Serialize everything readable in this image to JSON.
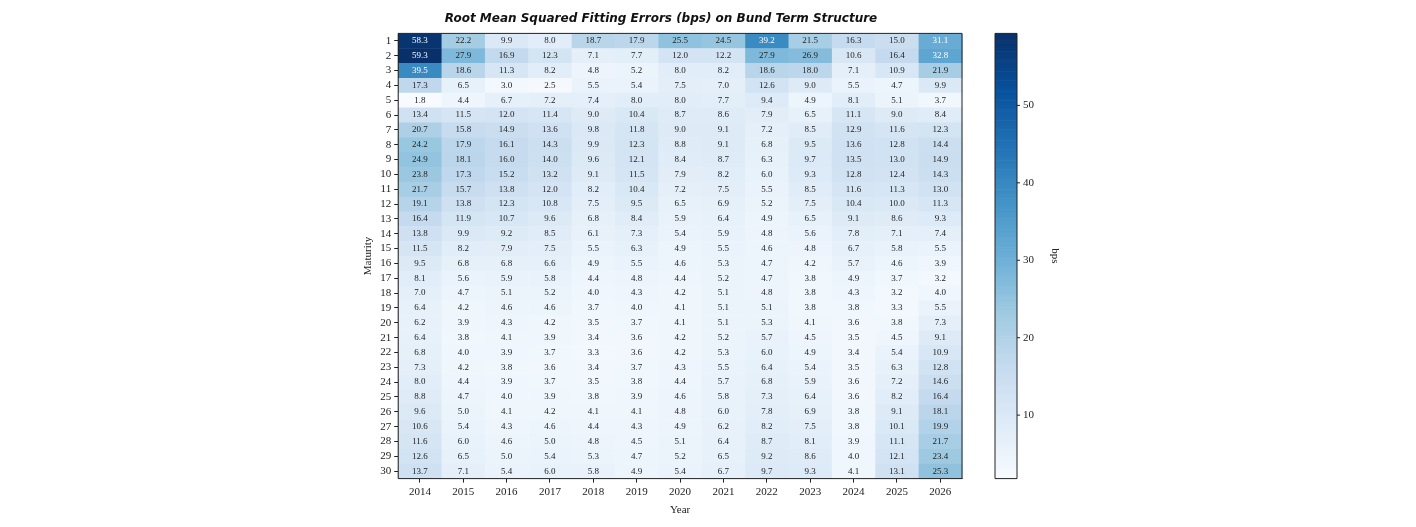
{
  "chart_data": {
    "type": "heatmap",
    "title": "Root Mean Squared Fitting Errors (bps) on Bund Term Structure",
    "xlabel": "Year",
    "ylabel": "Maturity",
    "clabel": "bps",
    "categories": [
      "2014",
      "2015",
      "2016",
      "2017",
      "2018",
      "2019",
      "2020",
      "2021",
      "2022",
      "2023",
      "2024",
      "2025",
      "2026"
    ],
    "y_categories": [
      "1",
      "2",
      "3",
      "4",
      "5",
      "6",
      "7",
      "8",
      "9",
      "10",
      "11",
      "12",
      "13",
      "14",
      "15",
      "16",
      "17",
      "18",
      "19",
      "20",
      "21",
      "22",
      "23",
      "24",
      "25",
      "26",
      "27",
      "28",
      "29",
      "30"
    ],
    "cells": [
      [
        58.3,
        22.2,
        9.9,
        8.0,
        18.7,
        17.9,
        25.5,
        24.5,
        39.2,
        21.5,
        16.3,
        15.0,
        31.1
      ],
      [
        59.3,
        27.9,
        16.9,
        12.3,
        7.1,
        7.7,
        12.0,
        12.2,
        27.9,
        26.9,
        10.6,
        16.4,
        32.8
      ],
      [
        39.5,
        18.6,
        11.3,
        8.2,
        4.8,
        5.2,
        8.0,
        8.2,
        18.6,
        18.0,
        7.1,
        10.9,
        21.9
      ],
      [
        17.3,
        6.5,
        3.0,
        2.5,
        5.5,
        5.4,
        7.5,
        7.0,
        12.6,
        9.0,
        5.5,
        4.7,
        9.9
      ],
      [
        1.8,
        4.4,
        6.7,
        7.2,
        7.4,
        8.0,
        8.0,
        7.7,
        9.4,
        4.9,
        8.1,
        5.1,
        3.7
      ],
      [
        13.4,
        11.5,
        12.0,
        11.4,
        9.0,
        10.4,
        8.7,
        8.6,
        7.9,
        6.5,
        11.1,
        9.0,
        8.4
      ],
      [
        20.7,
        15.8,
        14.9,
        13.6,
        9.8,
        11.8,
        9.0,
        9.1,
        7.2,
        8.5,
        12.9,
        11.6,
        12.3
      ],
      [
        24.2,
        17.9,
        16.1,
        14.3,
        9.9,
        12.3,
        8.8,
        9.1,
        6.8,
        9.5,
        13.6,
        12.8,
        14.4
      ],
      [
        24.9,
        18.1,
        16.0,
        14.0,
        9.6,
        12.1,
        8.4,
        8.7,
        6.3,
        9.7,
        13.5,
        13.0,
        14.9
      ],
      [
        23.8,
        17.3,
        15.2,
        13.2,
        9.1,
        11.5,
        7.9,
        8.2,
        6.0,
        9.3,
        12.8,
        12.4,
        14.3
      ],
      [
        21.7,
        15.7,
        13.8,
        12.0,
        8.2,
        10.4,
        7.2,
        7.5,
        5.5,
        8.5,
        11.6,
        11.3,
        13.0
      ],
      [
        19.1,
        13.8,
        12.3,
        10.8,
        7.5,
        9.5,
        6.5,
        6.9,
        5.2,
        7.5,
        10.4,
        10.0,
        11.3
      ],
      [
        16.4,
        11.9,
        10.7,
        9.6,
        6.8,
        8.4,
        5.9,
        6.4,
        4.9,
        6.5,
        9.1,
        8.6,
        9.3
      ],
      [
        13.8,
        9.9,
        9.2,
        8.5,
        6.1,
        7.3,
        5.4,
        5.9,
        4.8,
        5.6,
        7.8,
        7.1,
        7.4
      ],
      [
        11.5,
        8.2,
        7.9,
        7.5,
        5.5,
        6.3,
        4.9,
        5.5,
        4.6,
        4.8,
        6.7,
        5.8,
        5.5
      ],
      [
        9.5,
        6.8,
        6.8,
        6.6,
        4.9,
        5.5,
        4.6,
        5.3,
        4.7,
        4.2,
        5.7,
        4.6,
        3.9
      ],
      [
        8.1,
        5.6,
        5.9,
        5.8,
        4.4,
        4.8,
        4.4,
        5.2,
        4.7,
        3.8,
        4.9,
        3.7,
        3.2
      ],
      [
        7.0,
        4.7,
        5.1,
        5.2,
        4.0,
        4.3,
        4.2,
        5.1,
        4.8,
        3.8,
        4.3,
        3.2,
        4.0
      ],
      [
        6.4,
        4.2,
        4.6,
        4.6,
        3.7,
        4.0,
        4.1,
        5.1,
        5.1,
        3.8,
        3.8,
        3.3,
        5.5
      ],
      [
        6.2,
        3.9,
        4.3,
        4.2,
        3.5,
        3.7,
        4.1,
        5.1,
        5.3,
        4.1,
        3.6,
        3.8,
        7.3
      ],
      [
        6.4,
        3.8,
        4.1,
        3.9,
        3.4,
        3.6,
        4.2,
        5.2,
        5.7,
        4.5,
        3.5,
        4.5,
        9.1
      ],
      [
        6.8,
        4.0,
        3.9,
        3.7,
        3.3,
        3.6,
        4.2,
        5.3,
        6.0,
        4.9,
        3.4,
        5.4,
        10.9
      ],
      [
        7.3,
        4.2,
        3.8,
        3.6,
        3.4,
        3.7,
        4.3,
        5.5,
        6.4,
        5.4,
        3.5,
        6.3,
        12.8
      ],
      [
        8.0,
        4.4,
        3.9,
        3.7,
        3.5,
        3.8,
        4.4,
        5.7,
        6.8,
        5.9,
        3.6,
        7.2,
        14.6
      ],
      [
        8.8,
        4.7,
        4.0,
        3.9,
        3.8,
        3.9,
        4.6,
        5.8,
        7.3,
        6.4,
        3.6,
        8.2,
        16.4
      ],
      [
        9.6,
        5.0,
        4.1,
        4.2,
        4.1,
        4.1,
        4.8,
        6.0,
        7.8,
        6.9,
        3.8,
        9.1,
        18.1
      ],
      [
        10.6,
        5.4,
        4.3,
        4.6,
        4.4,
        4.3,
        4.9,
        6.2,
        8.2,
        7.5,
        3.8,
        10.1,
        19.9
      ],
      [
        11.6,
        6.0,
        4.6,
        5.0,
        4.8,
        4.5,
        5.1,
        6.4,
        8.7,
        8.1,
        3.9,
        11.1,
        21.7
      ],
      [
        12.6,
        6.5,
        5.0,
        5.4,
        5.3,
        4.7,
        5.2,
        6.5,
        9.2,
        8.6,
        4.0,
        12.1,
        23.4
      ],
      [
        13.7,
        7.1,
        5.4,
        6.0,
        5.8,
        4.9,
        5.4,
        6.7,
        9.7,
        9.3,
        4.1,
        13.1,
        25.3
      ]
    ],
    "cell_labels": [
      [
        "58.3",
        "22.2",
        "9.9",
        "8.0",
        "18.7",
        "17.9",
        "25.5",
        "24.5",
        "39.2",
        "21.5",
        "16.3",
        "15.0",
        "31.1"
      ],
      [
        "59.3",
        "27.9",
        "16.9",
        "12.3",
        "7.1",
        "7.7",
        "12.0",
        "12.2",
        "27.9",
        "26.9",
        "10.6",
        "16.4",
        "32.8"
      ],
      [
        "39.5",
        "18.6",
        "11.3",
        "8.2",
        "4.8",
        "5.2",
        "8.0",
        "8.2",
        "18.6",
        "18.0",
        "7.1",
        "10.9",
        "21.9"
      ],
      [
        "17.3",
        "6.5",
        "3.0",
        "2.5",
        "5.5",
        "5.4",
        "7.5",
        "7.0",
        "12.6",
        "9.0",
        "5.5",
        "4.7",
        "9.9"
      ],
      [
        "1.8",
        "4.4",
        "6.7",
        "7.2",
        "7.4",
        "8.0",
        "8.0",
        "7.7",
        "9.4",
        "4.9",
        "8.1",
        "5.1",
        "3.7"
      ],
      [
        "13.4",
        "11.5",
        "12.0",
        "11.4",
        "9.0",
        "10.4",
        "8.7",
        "8.6",
        "7.9",
        "6.5",
        "11.1",
        "9.0",
        "8.4"
      ],
      [
        "20.7",
        "15.8",
        "14.9",
        "13.6",
        "9.8",
        "11.8",
        "9.0",
        "9.1",
        "7.2",
        "8.5",
        "12.9",
        "11.6",
        "12.3"
      ],
      [
        "24.2",
        "17.9",
        "16.1",
        "14.3",
        "9.9",
        "12.3",
        "8.8",
        "9.1",
        "6.8",
        "9.5",
        "13.6",
        "12.8",
        "14.4"
      ],
      [
        "24.9",
        "18.1",
        "16.0",
        "14.0",
        "9.6",
        "12.1",
        "8.4",
        "8.7",
        "6.3",
        "9.7",
        "13.5",
        "13.0",
        "14.9"
      ],
      [
        "23.8",
        "17.3",
        "15.2",
        "13.2",
        "9.1",
        "11.5",
        "7.9",
        "8.2",
        "6.0",
        "9.3",
        "12.8",
        "12.4",
        "14.3"
      ],
      [
        "21.7",
        "15.7",
        "13.8",
        "12.0",
        "8.2",
        "10.4",
        "7.2",
        "7.5",
        "5.5",
        "8.5",
        "11.6",
        "11.3",
        "13.0"
      ],
      [
        "19.1",
        "13.8",
        "12.3",
        "10.8",
        "7.5",
        "9.5",
        "6.5",
        "6.9",
        "5.2",
        "7.5",
        "10.4",
        "10.0",
        "11.3"
      ],
      [
        "16.4",
        "11.9",
        "10.7",
        "9.6",
        "6.8",
        "8.4",
        "5.9",
        "6.4",
        "4.9",
        "6.5",
        "9.1",
        "8.6",
        "9.3"
      ],
      [
        "13.8",
        "9.9",
        "9.2",
        "8.5",
        "6.1",
        "7.3",
        "5.4",
        "5.9",
        "4.8",
        "5.6",
        "7.8",
        "7.1",
        "7.4"
      ],
      [
        "11.5",
        "8.2",
        "7.9",
        "7.5",
        "5.5",
        "6.3",
        "4.9",
        "5.5",
        "4.6",
        "4.8",
        "6.7",
        "5.8",
        "5.5"
      ],
      [
        "9.5",
        "6.8",
        "6.8",
        "6.6",
        "4.9",
        "5.5",
        "4.6",
        "5.3",
        "4.7",
        "4.2",
        "5.7",
        "4.6",
        "3.9"
      ],
      [
        "8.1",
        "5.6",
        "5.9",
        "5.8",
        "4.4",
        "4.8",
        "4.4",
        "5.2",
        "4.7",
        "3.8",
        "4.9",
        "3.7",
        "3.2"
      ],
      [
        "7.0",
        "4.7",
        "5.1",
        "5.2",
        "4.0",
        "4.3",
        "4.2",
        "5.1",
        "4.8",
        "3.8",
        "4.3",
        "3.2",
        "4.0"
      ],
      [
        "6.4",
        "4.2",
        "4.6",
        "4.6",
        "3.7",
        "4.0",
        "4.1",
        "5.1",
        "5.1",
        "3.8",
        "3.8",
        "3.3",
        "5.5"
      ],
      [
        "6.2",
        "3.9",
        "4.3",
        "4.2",
        "3.5",
        "3.7",
        "4.1",
        "5.1",
        "5.3",
        "4.1",
        "3.6",
        "3.8",
        "7.3"
      ],
      [
        "6.4",
        "3.8",
        "4.1",
        "3.9",
        "3.4",
        "3.6",
        "4.2",
        "5.2",
        "5.7",
        "4.5",
        "3.5",
        "4.5",
        "9.1"
      ],
      [
        "6.8",
        "4.0",
        "3.9",
        "3.7",
        "3.3",
        "3.6",
        "4.2",
        "5.3",
        "6.0",
        "4.9",
        "3.4",
        "5.4",
        "10.9"
      ],
      [
        "7.3",
        "4.2",
        "3.8",
        "3.6",
        "3.4",
        "3.7",
        "4.3",
        "5.5",
        "6.4",
        "5.4",
        "3.5",
        "6.3",
        "12.8"
      ],
      [
        "8.0",
        "4.4",
        "3.9",
        "3.7",
        "3.5",
        "3.8",
        "4.4",
        "5.7",
        "6.8",
        "5.9",
        "3.6",
        "7.2",
        "14.6"
      ],
      [
        "8.8",
        "4.7",
        "4.0",
        "3.9",
        "3.8",
        "3.9",
        "4.6",
        "5.8",
        "7.3",
        "6.4",
        "3.6",
        "8.2",
        "16.4"
      ],
      [
        "9.6",
        "5.0",
        "4.1",
        "4.2",
        "4.1",
        "4.1",
        "4.8",
        "6.0",
        "7.8",
        "6.9",
        "3.8",
        "9.1",
        "18.1"
      ],
      [
        "10.6",
        "5.4",
        "4.3",
        "4.6",
        "4.4",
        "4.3",
        "4.9",
        "6.2",
        "8.2",
        "7.5",
        "3.8",
        "10.1",
        "19.9"
      ],
      [
        "11.6",
        "6.0",
        "4.6",
        "5.0",
        "4.8",
        "4.5",
        "5.1",
        "6.4",
        "8.7",
        "8.1",
        "3.9",
        "11.1",
        "21.7"
      ],
      [
        "12.6",
        "6.5",
        "5.0",
        "5.4",
        "5.3",
        "4.7",
        "5.2",
        "6.5",
        "9.2",
        "8.6",
        "4.0",
        "12.1",
        "23.4"
      ],
      [
        "13.7",
        "7.1",
        "5.4",
        "6.0",
        "5.8",
        "4.9",
        "5.4",
        "6.7",
        "9.7",
        "9.3",
        "4.1",
        "13.1",
        "25.3"
      ]
    ],
    "clim": [
      1.8,
      59.3
    ],
    "cticks": [
      10,
      20,
      30,
      40,
      50
    ]
  }
}
